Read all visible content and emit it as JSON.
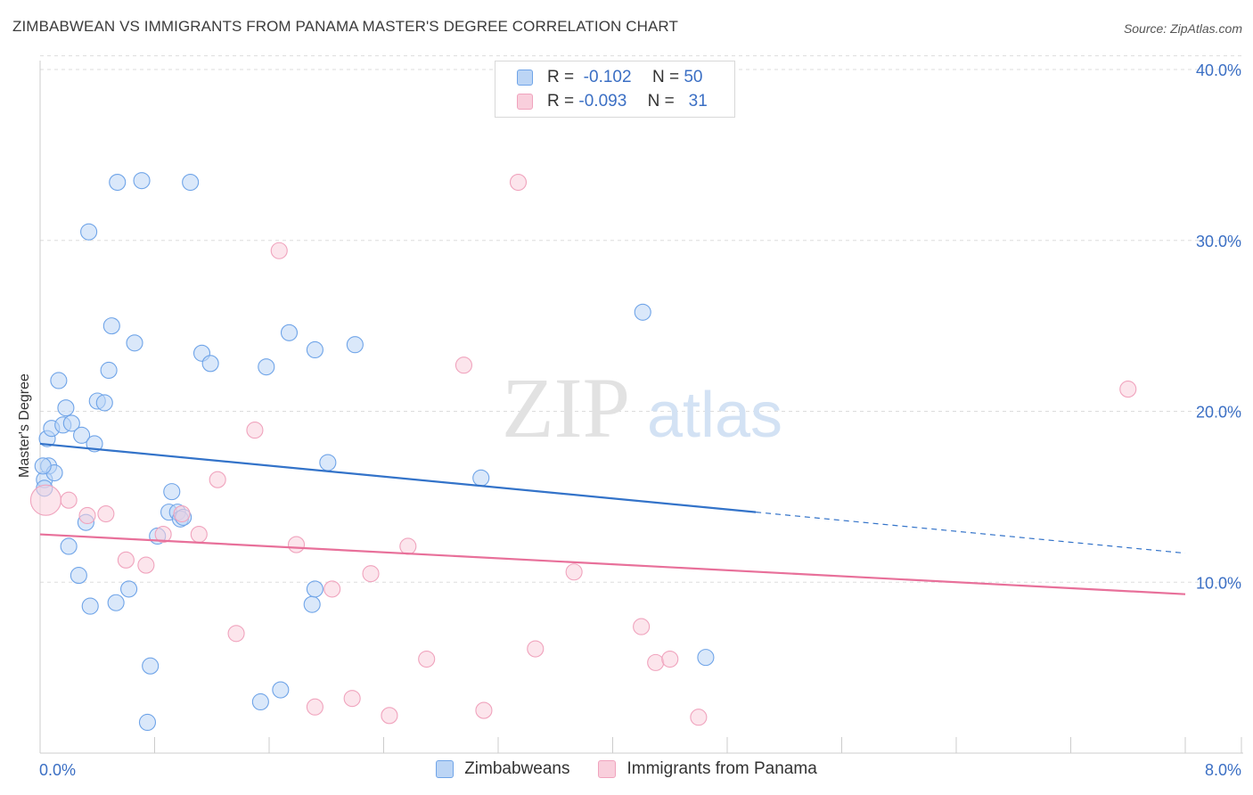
{
  "chart_data": {
    "type": "scatter",
    "title": "ZIMBABWEAN VS IMMIGRANTS FROM PANAMA MASTER'S DEGREE CORRELATION CHART",
    "source": "Source: ZipAtlas.com",
    "ylabel": "Master's Degree",
    "xlim": [
      0.0,
      8.0
    ],
    "ylim": [
      0.0,
      40.0
    ],
    "x_tick_labels": [
      "0.0%",
      "8.0%"
    ],
    "y_ticks": [
      10,
      20,
      30,
      40
    ],
    "y_tick_labels": [
      "10.0%",
      "20.0%",
      "30.0%",
      "40.0%"
    ],
    "watermark": {
      "zip": "ZIP",
      "atlas": "atlas"
    },
    "legend_stats": [
      {
        "r_label": "R =",
        "r_value": "-0.102",
        "n_label": "N =",
        "n_value": "50"
      },
      {
        "r_label": "R =",
        "r_value": "-0.093",
        "n_label": "N =",
        "n_value": "31"
      }
    ],
    "series": [
      {
        "name": "Zimbabweans",
        "color": "#6fa4e8",
        "fill": "#bcd5f5",
        "line_color": "#3373c9",
        "trend": {
          "x0": 0.0,
          "y0": 18.1,
          "x1": 5.0,
          "y1": 14.1,
          "dash_x1": 8.0,
          "dash_y1": 11.7
        },
        "points": [
          [
            0.03,
            16.0,
            9
          ],
          [
            0.05,
            18.4,
            9
          ],
          [
            0.06,
            16.8,
            9
          ],
          [
            0.08,
            19.0,
            9
          ],
          [
            0.1,
            16.4,
            9
          ],
          [
            0.13,
            21.8,
            9
          ],
          [
            0.16,
            19.2,
            9
          ],
          [
            0.18,
            20.2,
            9
          ],
          [
            0.2,
            12.1,
            9
          ],
          [
            0.22,
            19.3,
            9
          ],
          [
            0.27,
            10.4,
            9
          ],
          [
            0.29,
            18.6,
            9
          ],
          [
            0.32,
            13.5,
            9
          ],
          [
            0.34,
            30.5,
            9
          ],
          [
            0.35,
            8.6,
            9
          ],
          [
            0.38,
            18.1,
            9
          ],
          [
            0.4,
            20.6,
            9
          ],
          [
            0.45,
            20.5,
            9
          ],
          [
            0.5,
            25.0,
            9
          ],
          [
            0.48,
            22.4,
            9
          ],
          [
            0.53,
            8.8,
            9
          ],
          [
            0.54,
            33.4,
            9
          ],
          [
            0.62,
            9.6,
            9
          ],
          [
            0.66,
            24.0,
            9
          ],
          [
            0.71,
            33.5,
            9
          ],
          [
            0.77,
            5.1,
            9
          ],
          [
            0.75,
            1.8,
            9
          ],
          [
            0.82,
            12.7,
            9
          ],
          [
            0.9,
            14.1,
            9
          ],
          [
            0.92,
            15.3,
            9
          ],
          [
            0.96,
            14.1,
            9
          ],
          [
            0.98,
            13.7,
            9
          ],
          [
            1.0,
            13.8,
            9
          ],
          [
            1.05,
            33.4,
            9
          ],
          [
            1.13,
            23.4,
            9
          ],
          [
            1.19,
            22.8,
            9
          ],
          [
            0.02,
            16.8,
            9
          ],
          [
            1.54,
            3.0,
            9
          ],
          [
            1.58,
            22.6,
            9
          ],
          [
            1.68,
            3.7,
            9
          ],
          [
            1.74,
            24.6,
            9
          ],
          [
            1.9,
            8.7,
            9
          ],
          [
            1.92,
            9.6,
            9
          ],
          [
            1.92,
            23.6,
            9
          ],
          [
            2.01,
            17.0,
            9
          ],
          [
            2.2,
            23.9,
            9
          ],
          [
            3.08,
            16.1,
            9
          ],
          [
            4.21,
            25.8,
            9
          ],
          [
            4.65,
            5.6,
            9
          ],
          [
            0.03,
            15.5,
            9
          ]
        ]
      },
      {
        "name": "Immigrants from Panama",
        "color": "#f0a3bd",
        "fill": "#f9cfdc",
        "line_color": "#e8709a",
        "trend": {
          "x0": 0.0,
          "y0": 12.8,
          "x1": 8.0,
          "y1": 9.3
        },
        "points": [
          [
            0.04,
            14.8,
            17
          ],
          [
            0.2,
            14.8,
            9
          ],
          [
            0.33,
            13.9,
            9
          ],
          [
            0.46,
            14.0,
            9
          ],
          [
            0.6,
            11.3,
            9
          ],
          [
            0.74,
            11.0,
            9
          ],
          [
            0.86,
            12.8,
            9
          ],
          [
            0.99,
            14.0,
            9
          ],
          [
            1.11,
            12.8,
            9
          ],
          [
            1.24,
            16.0,
            9
          ],
          [
            1.37,
            7.0,
            9
          ],
          [
            1.5,
            18.9,
            9
          ],
          [
            1.67,
            29.4,
            9
          ],
          [
            1.79,
            12.2,
            9
          ],
          [
            1.92,
            2.7,
            9
          ],
          [
            2.04,
            9.6,
            9
          ],
          [
            2.18,
            3.2,
            9
          ],
          [
            2.31,
            10.5,
            9
          ],
          [
            2.44,
            2.2,
            9
          ],
          [
            2.57,
            12.1,
            9
          ],
          [
            2.7,
            5.5,
            9
          ],
          [
            2.96,
            22.7,
            9
          ],
          [
            3.1,
            2.5,
            9
          ],
          [
            3.34,
            33.4,
            9
          ],
          [
            3.46,
            6.1,
            9
          ],
          [
            3.73,
            10.6,
            9
          ],
          [
            4.2,
            7.4,
            9
          ],
          [
            4.3,
            5.3,
            9
          ],
          [
            4.4,
            5.5,
            9
          ],
          [
            4.6,
            2.1,
            9
          ],
          [
            7.6,
            21.3,
            9
          ]
        ]
      }
    ]
  }
}
